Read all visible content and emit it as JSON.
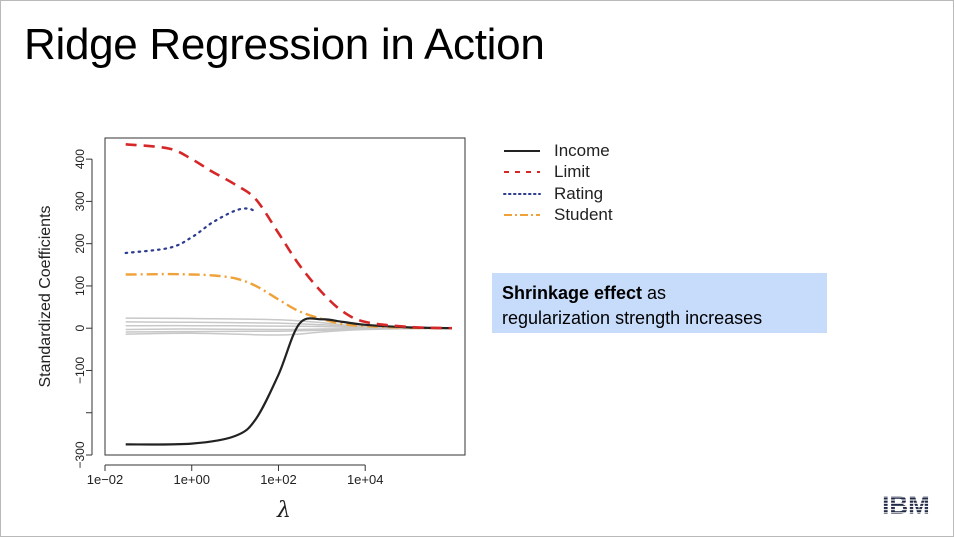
{
  "slide": {
    "title": "Ridge Regression in Action",
    "callout": {
      "bold": "Shrinkage effect",
      "normal_a": " as",
      "normal_b": "regularization strength increases",
      "background": "#c7dcfb"
    },
    "logo_text": "IBM"
  },
  "chart_data": {
    "type": "line",
    "title": "",
    "xlabel": "λ",
    "ylabel": "Standardized Coefficients",
    "x_scale": "log10",
    "xlim": [
      0.01,
      2000000
    ],
    "ylim": [
      -300,
      450
    ],
    "x_ticks": [
      0.01,
      1,
      100,
      10000
    ],
    "x_tick_labels": [
      "1e−02",
      "1e+00",
      "1e+02",
      "1e+04"
    ],
    "y_ticks": [
      -300,
      -100,
      0,
      100,
      200,
      300,
      400
    ],
    "y_tick_labels": [
      "−300",
      "−100",
      "0",
      "100",
      "200",
      "300",
      "400"
    ],
    "legend_position": "right",
    "series": [
      {
        "name": "Income",
        "color": "#222222",
        "style": "solid",
        "x": [
          0.03,
          1,
          10,
          30,
          100,
          300,
          1000,
          3000,
          10000,
          100000,
          1000000
        ],
        "y": [
          -275,
          -273,
          -255,
          -215,
          -110,
          10,
          21,
          15,
          8,
          2,
          0
        ]
      },
      {
        "name": "Limit",
        "color": "#d62728",
        "style": "dashed",
        "x": [
          0.03,
          0.3,
          1,
          3,
          10,
          30,
          100,
          300,
          1000,
          3000,
          10000,
          100000,
          1000000
        ],
        "y": [
          435,
          425,
          400,
          370,
          340,
          305,
          225,
          150,
          85,
          40,
          15,
          3,
          0
        ]
      },
      {
        "name": "Rating",
        "color": "#2b3b8f",
        "style": "dotted",
        "x": [
          0.03,
          0.3,
          1,
          3,
          10,
          20,
          30
        ],
        "y": [
          178,
          190,
          215,
          250,
          278,
          283,
          275
        ]
      },
      {
        "name": "Student",
        "color": "#f0a23a",
        "style": "dashdot",
        "x": [
          0.03,
          0.3,
          1,
          3,
          10,
          30,
          100,
          300,
          1000,
          3000,
          10000,
          100000,
          1000000
        ],
        "y": [
          127,
          128,
          127,
          125,
          118,
          100,
          68,
          40,
          22,
          10,
          5,
          1,
          0
        ]
      }
    ],
    "background_series": [
      {
        "color": "#c8c8c8",
        "x": [
          0.03,
          1,
          100,
          1000,
          10000,
          1000000
        ],
        "y": [
          24,
          23,
          20,
          13,
          4,
          0
        ]
      },
      {
        "color": "#c8c8c8",
        "x": [
          0.03,
          1,
          100,
          1000,
          10000,
          1000000
        ],
        "y": [
          15,
          14,
          12,
          8,
          3,
          0
        ]
      },
      {
        "color": "#c8c8c8",
        "x": [
          0.03,
          1,
          100,
          1000,
          10000,
          1000000
        ],
        "y": [
          6,
          6,
          5,
          4,
          1,
          0
        ]
      },
      {
        "color": "#c8c8c8",
        "x": [
          0.03,
          1,
          100,
          1000,
          10000,
          1000000
        ],
        "y": [
          -3,
          -2,
          -3,
          -2,
          -1,
          0
        ]
      },
      {
        "color": "#c8c8c8",
        "x": [
          0.03,
          1,
          100,
          1000,
          10000,
          1000000
        ],
        "y": [
          -9,
          -8,
          -7,
          -5,
          -2,
          0
        ]
      },
      {
        "color": "#c8c8c8",
        "x": [
          0.03,
          1,
          100,
          1000,
          10000,
          1000000
        ],
        "y": [
          -14,
          -12,
          -16,
          -9,
          -3,
          0
        ]
      }
    ]
  }
}
